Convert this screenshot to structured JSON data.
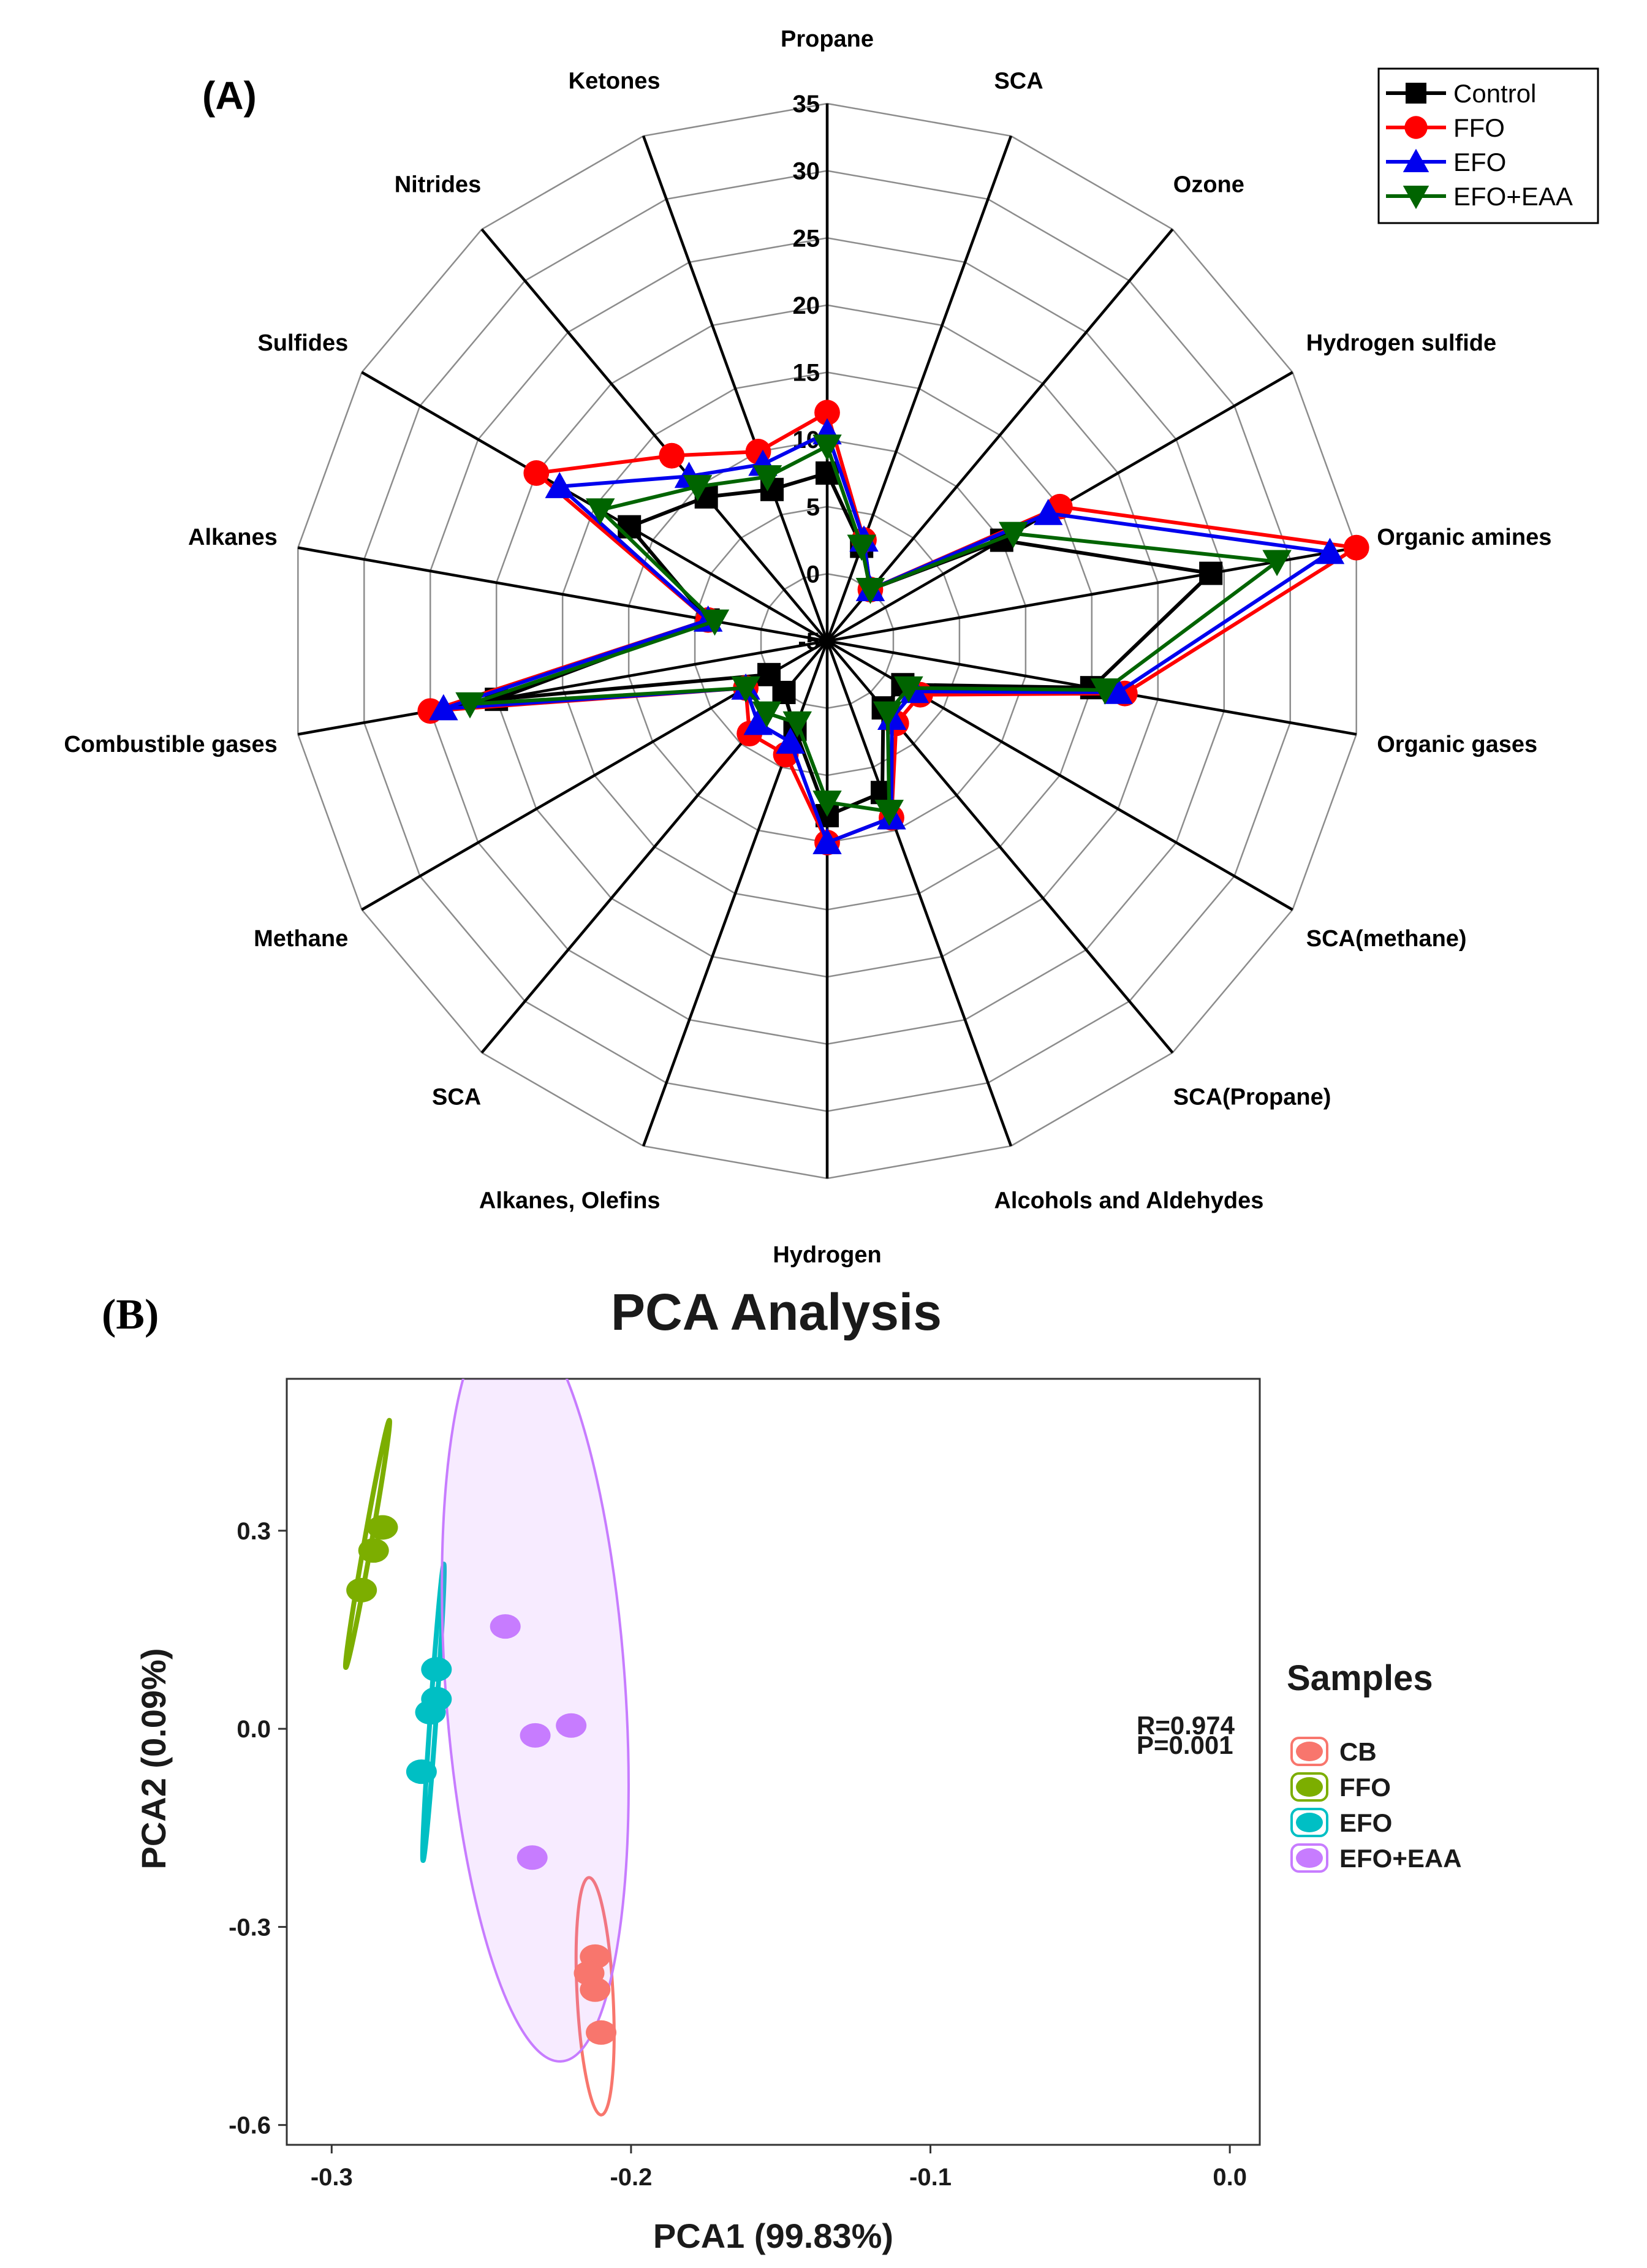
{
  "chart_data": [
    {
      "type": "radar",
      "panel_label": "(A)",
      "categories": [
        "Propane",
        "SCA",
        "Ozone",
        "Hydrogen sulfide",
        "Organic amines",
        "Organic gases",
        "SCA(methane)",
        "SCA(Propane)",
        "Alcohols and Aldehydes",
        "Hydrogen",
        "Alkanes, Olefins",
        "SCA",
        "Methane",
        "Combustible gases",
        "Alkanes",
        "Sulfides",
        "Nitrides",
        "Ketones"
      ],
      "radial_ticks": [
        "-5",
        "0",
        "5",
        "10",
        "15",
        "20",
        "25",
        "30",
        "35"
      ],
      "rlim": [
        -5,
        35
      ],
      "series": [
        {
          "name": "Control",
          "color": "#000000",
          "marker": "square",
          "values": [
            7.5,
            2.5,
            0,
            10,
            24,
            15,
            1.5,
            1.5,
            7,
            8,
            2,
            0,
            0,
            20,
            4,
            12,
            9,
            7
          ]
        },
        {
          "name": "FFO",
          "color": "#ff0000",
          "marker": "circle",
          "values": [
            12,
            3,
            0,
            15,
            35,
            17.5,
            3,
            3,
            9,
            10,
            4,
            4,
            2,
            25,
            4,
            20,
            13,
            10
          ]
        },
        {
          "name": "EFO",
          "color": "#0000ee",
          "marker": "triangle-up",
          "values": [
            10.5,
            3,
            0,
            14,
            33,
            17,
            2.5,
            2.5,
            9,
            10,
            3,
            3,
            2,
            24,
            4,
            18,
            11,
            9
          ]
        },
        {
          "name": "EFO+EAA",
          "color": "#006400",
          "marker": "triangle-down",
          "values": [
            9.5,
            2.5,
            0,
            11,
            29,
            16,
            2,
            2,
            8.5,
            7,
            1.5,
            2,
            2,
            22,
            3.5,
            14.5,
            10,
            8
          ]
        }
      ]
    },
    {
      "type": "scatter",
      "panel_label": "(B)",
      "title": "PCA Analysis",
      "xlabel": "PCA1 (99.83%)",
      "ylabel": "PCA2 (0.09%)",
      "xlim": [
        -0.315,
        0.01
      ],
      "ylim": [
        -0.63,
        0.53
      ],
      "xticks": [
        -0.3,
        -0.2,
        -0.1,
        0.0
      ],
      "xtick_labels": [
        "-0.3",
        "-0.2",
        "-0.1",
        "0.0"
      ],
      "yticks": [
        0.3,
        0.0,
        -0.3,
        -0.6
      ],
      "ytick_labels": [
        "0.3",
        "0.0",
        "-0.3",
        "-0.6"
      ],
      "legend_title": "Samples",
      "stats": [
        "R=0.974",
        "P=0.001"
      ],
      "series": [
        {
          "name": "CB",
          "color": "#f8766d",
          "points": [
            [
              -0.212,
              -0.345
            ],
            [
              -0.214,
              -0.37
            ],
            [
              -0.212,
              -0.395
            ],
            [
              -0.21,
              -0.46
            ]
          ],
          "ellipse": {
            "cx": -0.212,
            "cy": -0.405,
            "rx": 0.006,
            "ry": 0.18,
            "rotate_deg": -3,
            "filled": false
          }
        },
        {
          "name": "FFO",
          "color": "#7cae00",
          "points": [
            [
              -0.283,
              0.305
            ],
            [
              -0.286,
              0.27
            ],
            [
              -0.29,
              0.21
            ],
            [
              -0.283,
              0.305
            ]
          ],
          "ellipse": {
            "cx": -0.288,
            "cy": 0.28,
            "rx": 0.0012,
            "ry": 0.19,
            "rotate_deg": 10,
            "filled": false
          }
        },
        {
          "name": "EFO",
          "color": "#00bfc4",
          "points": [
            [
              -0.265,
              0.09
            ],
            [
              -0.265,
              0.045
            ],
            [
              -0.267,
              0.025
            ],
            [
              -0.27,
              -0.065
            ]
          ],
          "ellipse": {
            "cx": -0.266,
            "cy": 0.025,
            "rx": 0.001,
            "ry": 0.225,
            "rotate_deg": 4,
            "filled": false
          }
        },
        {
          "name": "EFO+EAA",
          "color": "#c77cff",
          "points": [
            [
              -0.242,
              0.155
            ],
            [
              -0.232,
              -0.01
            ],
            [
              -0.22,
              0.005
            ],
            [
              -0.233,
              -0.195
            ]
          ],
          "ellipse": {
            "cx": -0.232,
            "cy": 0.065,
            "rx": 0.03,
            "ry": 0.57,
            "rotate_deg": -4,
            "filled": true
          }
        }
      ]
    }
  ]
}
